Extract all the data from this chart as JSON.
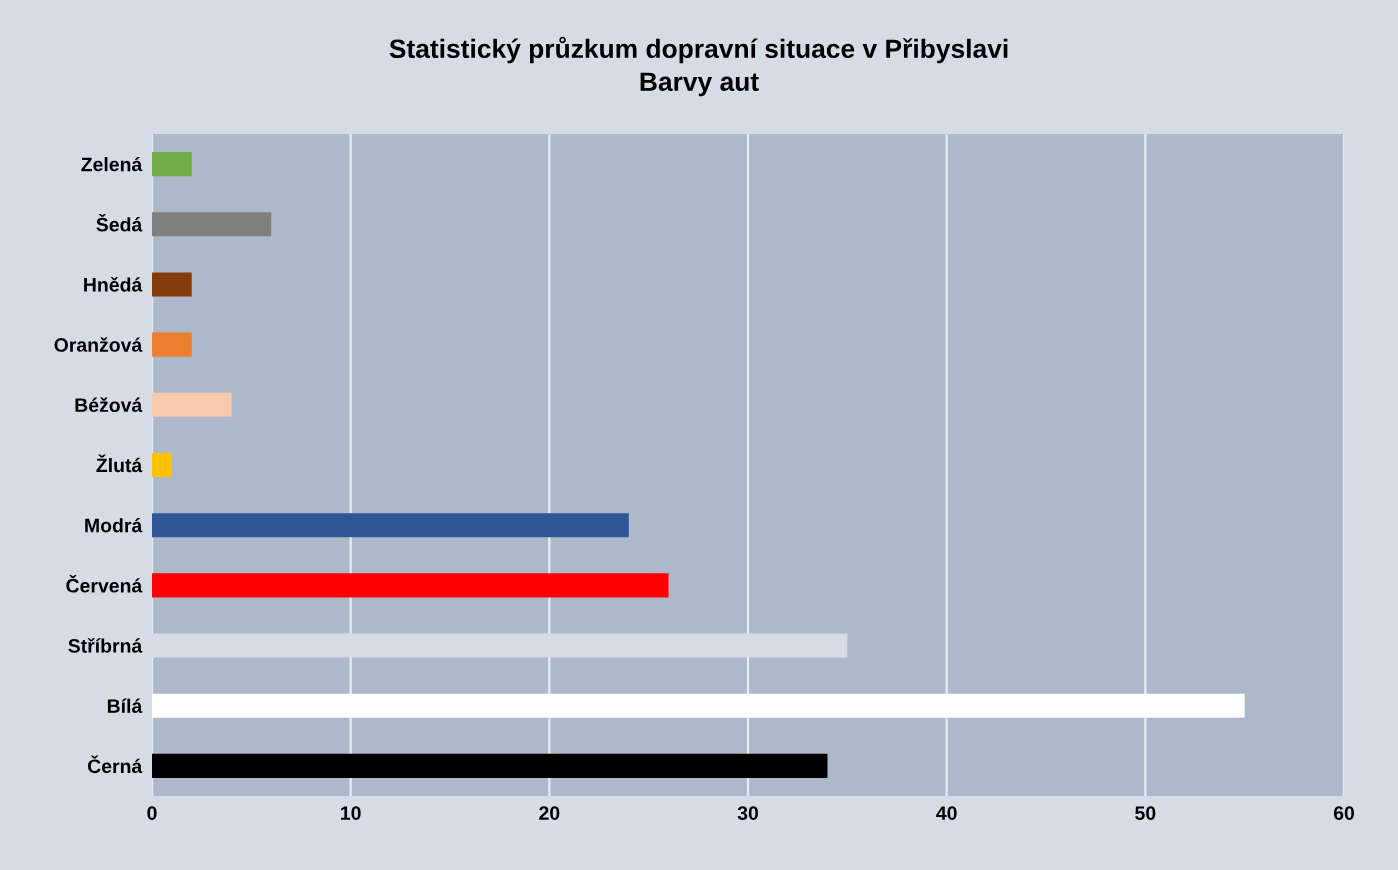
{
  "chart_data": {
    "type": "bar",
    "orientation": "horizontal",
    "title": "Statistický průzkum dopravní situace v Přibyslavi",
    "subtitle": "Barvy aut",
    "categories": [
      "Zelená",
      "Šedá",
      "Hnědá",
      "Oranžová",
      "Béžová",
      "Žlutá",
      "Modrá",
      "Červená",
      "Stříbrná",
      "Bílá",
      "Černá"
    ],
    "values": [
      2,
      6,
      2,
      2,
      4,
      1,
      24,
      26,
      35,
      55,
      34
    ],
    "colors": [
      "#70ad47",
      "#808080",
      "#843c0c",
      "#ed7d31",
      "#f8cbad",
      "#ffc000",
      "#2f5597",
      "#ff0000",
      "#d6dce5",
      "#ffffff",
      "#000000"
    ],
    "xlim": [
      0,
      60
    ],
    "xticks": [
      0,
      10,
      20,
      30,
      40,
      50,
      60
    ],
    "grid": "x",
    "legend": false
  }
}
